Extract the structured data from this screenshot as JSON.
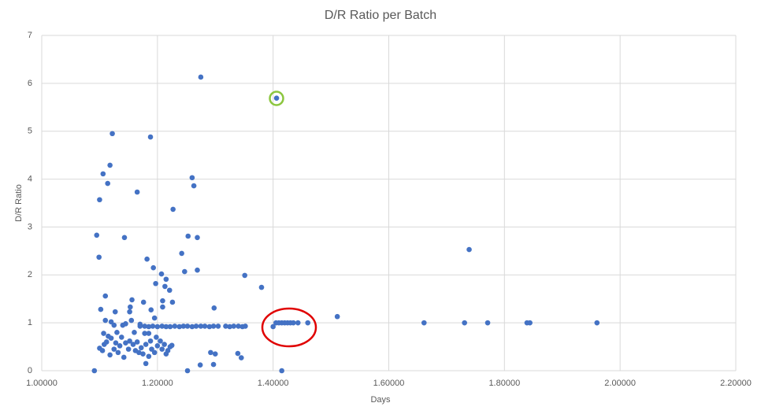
{
  "chart_data": {
    "type": "scatter",
    "title": "D/R Ratio per Batch",
    "xlabel": "Days",
    "ylabel": "D/R Ratio",
    "color": "#4472c4",
    "grid": true,
    "xlim": [
      1.0,
      2.2
    ],
    "xticks": [
      {
        "value": 1.0,
        "label": "1.00000"
      },
      {
        "value": 1.2,
        "label": "1.20000"
      },
      {
        "value": 1.4,
        "label": "1.40000"
      },
      {
        "value": 1.6,
        "label": "1.60000"
      },
      {
        "value": 1.8,
        "label": "1.80000"
      },
      {
        "value": 2.0,
        "label": "2.00000"
      },
      {
        "value": 2.2,
        "label": "2.20000"
      }
    ],
    "ylim": [
      0,
      7
    ],
    "yticks": [
      0,
      1,
      2,
      3,
      4,
      5,
      6,
      7
    ],
    "x": [
      1.091,
      1.095,
      1.099,
      1.1,
      1.106,
      1.114,
      1.118,
      1.122,
      1.165,
      1.143,
      1.188,
      1.275,
      1.406,
      1.26,
      1.263,
      1.227,
      1.182,
      1.193,
      1.242,
      1.253,
      1.269,
      1.269,
      1.247,
      1.207,
      1.351,
      1.38,
      1.197,
      1.215,
      1.213,
      1.221,
      1.156,
      1.176,
      1.209,
      1.226,
      1.209,
      1.298,
      1.11,
      1.102,
      1.127,
      1.152,
      1.153,
      1.189,
      1.511,
      1.661,
      1.731,
      1.739,
      1.771,
      1.839,
      1.844,
      1.96,
      1.17,
      1.178,
      1.185,
      1.192,
      1.2,
      1.208,
      1.215,
      1.222,
      1.23,
      1.238,
      1.245,
      1.252,
      1.26,
      1.267,
      1.275,
      1.282,
      1.29,
      1.297,
      1.305,
      1.318,
      1.325,
      1.332,
      1.34,
      1.347,
      1.352,
      1.4,
      1.405,
      1.41,
      1.415,
      1.42,
      1.425,
      1.43,
      1.435,
      1.443,
      1.46,
      1.252,
      1.415,
      1.274,
      1.297,
      1.292,
      1.3,
      1.339,
      1.345,
      1.18,
      1.1,
      1.105,
      1.108,
      1.112,
      1.107,
      1.115,
      1.12,
      1.118,
      1.125,
      1.128,
      1.132,
      1.135,
      1.138,
      1.142,
      1.145,
      1.15,
      1.152,
      1.158,
      1.162,
      1.165,
      1.168,
      1.172,
      1.175,
      1.178,
      1.18,
      1.185,
      1.188,
      1.19,
      1.195,
      1.198,
      1.2,
      1.205,
      1.208,
      1.212,
      1.215,
      1.218,
      1.222,
      1.225,
      1.13,
      1.125,
      1.11,
      1.12,
      1.14,
      1.145,
      1.155,
      1.17,
      1.195,
      1.16,
      1.185
    ],
    "values": [
      0,
      2.83,
      2.37,
      3.57,
      4.11,
      3.91,
      4.29,
      4.95,
      3.73,
      2.78,
      4.88,
      6.13,
      5.69,
      4.03,
      3.86,
      3.37,
      2.33,
      2.15,
      2.45,
      2.81,
      2.78,
      2.1,
      2.07,
      2.02,
      1.99,
      1.74,
      1.82,
      1.91,
      1.76,
      1.68,
      1.48,
      1.43,
      1.46,
      1.43,
      1.33,
      1.31,
      1.56,
      1.28,
      1.23,
      1.23,
      1.33,
      1.27,
      1.13,
      1.0,
      1.0,
      2.53,
      1.0,
      1.0,
      1.0,
      1.0,
      0.93,
      0.93,
      0.92,
      0.93,
      0.92,
      0.93,
      0.92,
      0.92,
      0.93,
      0.92,
      0.93,
      0.93,
      0.92,
      0.93,
      0.93,
      0.93,
      0.92,
      0.93,
      0.93,
      0.93,
      0.92,
      0.93,
      0.93,
      0.92,
      0.93,
      0.92,
      1.0,
      1.0,
      1.0,
      1.0,
      1.0,
      1.0,
      1.0,
      1.0,
      1.0,
      0,
      0,
      0.12,
      0.13,
      0.38,
      0.35,
      0.36,
      0.27,
      0.15,
      0.47,
      0.42,
      0.55,
      0.6,
      0.78,
      0.72,
      0.68,
      0.33,
      0.45,
      0.58,
      0.38,
      0.52,
      0.7,
      0.28,
      0.58,
      0.45,
      0.62,
      0.55,
      0.42,
      0.6,
      0.38,
      0.48,
      0.35,
      0.78,
      0.55,
      0.3,
      0.62,
      0.45,
      0.38,
      0.7,
      0.52,
      0.62,
      0.45,
      0.55,
      0.35,
      0.42,
      0.5,
      0.53,
      0.8,
      0.95,
      1.05,
      1.02,
      0.95,
      0.98,
      1.05,
      0.97,
      1.1,
      0.8,
      0.78
    ]
  }
}
